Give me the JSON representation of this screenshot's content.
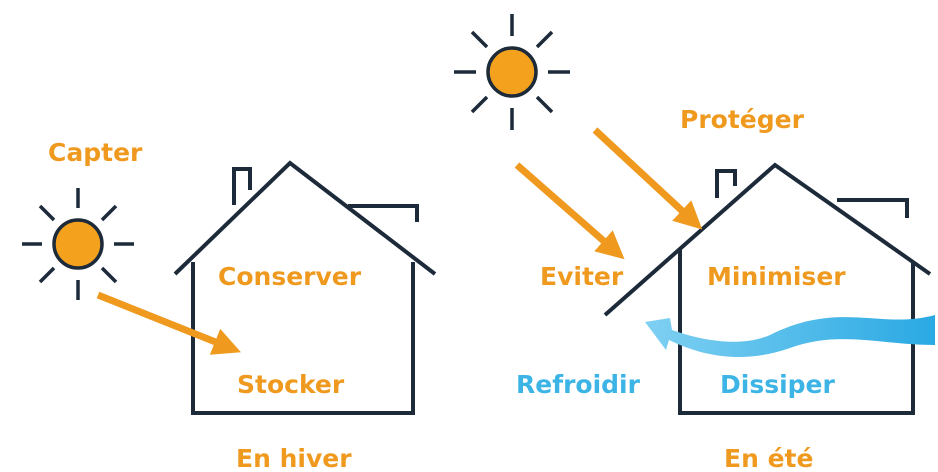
{
  "winter": {
    "labels": [
      "Capter",
      "Conserver",
      "Stocker"
    ],
    "caption": "En hiver"
  },
  "summer": {
    "labels": [
      "Protéger",
      "Eviter",
      "Minimiser",
      "Refroidir",
      "Dissiper"
    ],
    "caption": "En été"
  }
}
